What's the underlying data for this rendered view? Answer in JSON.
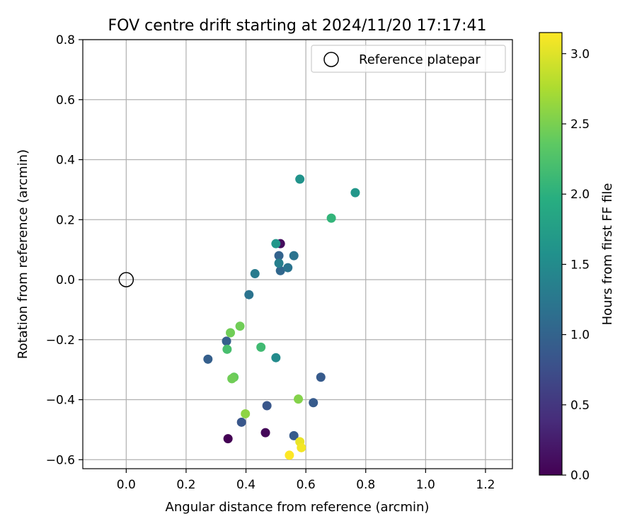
{
  "chart_data": {
    "type": "scatter",
    "title": "FOV centre drift starting at 2024/11/20 17:17:41",
    "xlabel": "Angular distance from reference (arcmin)",
    "ylabel": "Rotation from reference (arcmin)",
    "xlim": [
      -0.145,
      1.29
    ],
    "ylim": [
      -0.63,
      0.8
    ],
    "xticks": [
      0.0,
      0.2,
      0.4,
      0.6,
      0.8,
      1.0,
      1.2
    ],
    "xtick_labels": [
      "0.0",
      "0.2",
      "0.4",
      "0.6",
      "0.8",
      "1.0",
      "1.2"
    ],
    "yticks": [
      -0.6,
      -0.4,
      -0.2,
      0.0,
      0.2,
      0.4,
      0.6,
      0.8
    ],
    "ytick_labels": [
      "−0.6",
      "−0.4",
      "−0.2",
      "0.0",
      "0.2",
      "0.4",
      "0.6",
      "0.8"
    ],
    "grid": true,
    "legend": {
      "placement": "top-right",
      "entries": [
        "Reference platepar"
      ]
    },
    "reference_point": {
      "x": 0.0,
      "y": 0.0,
      "label": "Reference platepar"
    },
    "colorbar": {
      "label": "Hours from first FF file",
      "range": [
        0.0,
        3.15
      ],
      "colormap": "viridis",
      "ticks": [
        0.0,
        0.5,
        1.0,
        1.5,
        2.0,
        2.5,
        3.0
      ],
      "tick_labels": [
        "0.0",
        "0.5",
        "1.0",
        "1.5",
        "2.0",
        "2.5",
        "3.0"
      ]
    },
    "points": [
      {
        "x": 0.34,
        "y": -0.53,
        "hours": 0.0
      },
      {
        "x": 0.465,
        "y": -0.51,
        "hours": 0.05
      },
      {
        "x": 0.515,
        "y": 0.12,
        "hours": 0.1
      },
      {
        "x": 0.56,
        "y": -0.52,
        "hours": 0.9
      },
      {
        "x": 0.625,
        "y": -0.41,
        "hours": 0.9
      },
      {
        "x": 0.47,
        "y": -0.42,
        "hours": 0.85
      },
      {
        "x": 0.385,
        "y": -0.475,
        "hours": 0.85
      },
      {
        "x": 0.65,
        "y": -0.325,
        "hours": 0.9
      },
      {
        "x": 0.273,
        "y": -0.265,
        "hours": 0.95
      },
      {
        "x": 0.335,
        "y": -0.205,
        "hours": 0.95
      },
      {
        "x": 0.51,
        "y": 0.08,
        "hours": 1.0
      },
      {
        "x": 0.515,
        "y": 0.03,
        "hours": 1.05
      },
      {
        "x": 0.54,
        "y": 0.04,
        "hours": 1.2
      },
      {
        "x": 0.56,
        "y": 0.08,
        "hours": 1.2
      },
      {
        "x": 0.41,
        "y": -0.05,
        "hours": 1.2
      },
      {
        "x": 0.43,
        "y": 0.02,
        "hours": 1.3
      },
      {
        "x": 0.51,
        "y": 0.055,
        "hours": 1.35
      },
      {
        "x": 0.5,
        "y": -0.26,
        "hours": 1.5
      },
      {
        "x": 0.58,
        "y": 0.335,
        "hours": 1.6
      },
      {
        "x": 0.5,
        "y": 0.12,
        "hours": 1.65
      },
      {
        "x": 0.765,
        "y": 0.29,
        "hours": 1.65
      },
      {
        "x": 0.685,
        "y": 0.205,
        "hours": 2.05
      },
      {
        "x": 0.45,
        "y": -0.225,
        "hours": 2.15
      },
      {
        "x": 0.337,
        "y": -0.232,
        "hours": 2.2
      },
      {
        "x": 0.348,
        "y": -0.177,
        "hours": 2.45
      },
      {
        "x": 0.38,
        "y": -0.155,
        "hours": 2.45
      },
      {
        "x": 0.36,
        "y": -0.325,
        "hours": 2.4
      },
      {
        "x": 0.353,
        "y": -0.33,
        "hours": 2.45
      },
      {
        "x": 0.575,
        "y": -0.398,
        "hours": 2.55
      },
      {
        "x": 0.398,
        "y": -0.447,
        "hours": 2.6
      },
      {
        "x": 0.58,
        "y": -0.54,
        "hours": 3.05
      },
      {
        "x": 0.585,
        "y": -0.56,
        "hours": 3.1
      },
      {
        "x": 0.545,
        "y": -0.585,
        "hours": 3.15
      }
    ]
  }
}
